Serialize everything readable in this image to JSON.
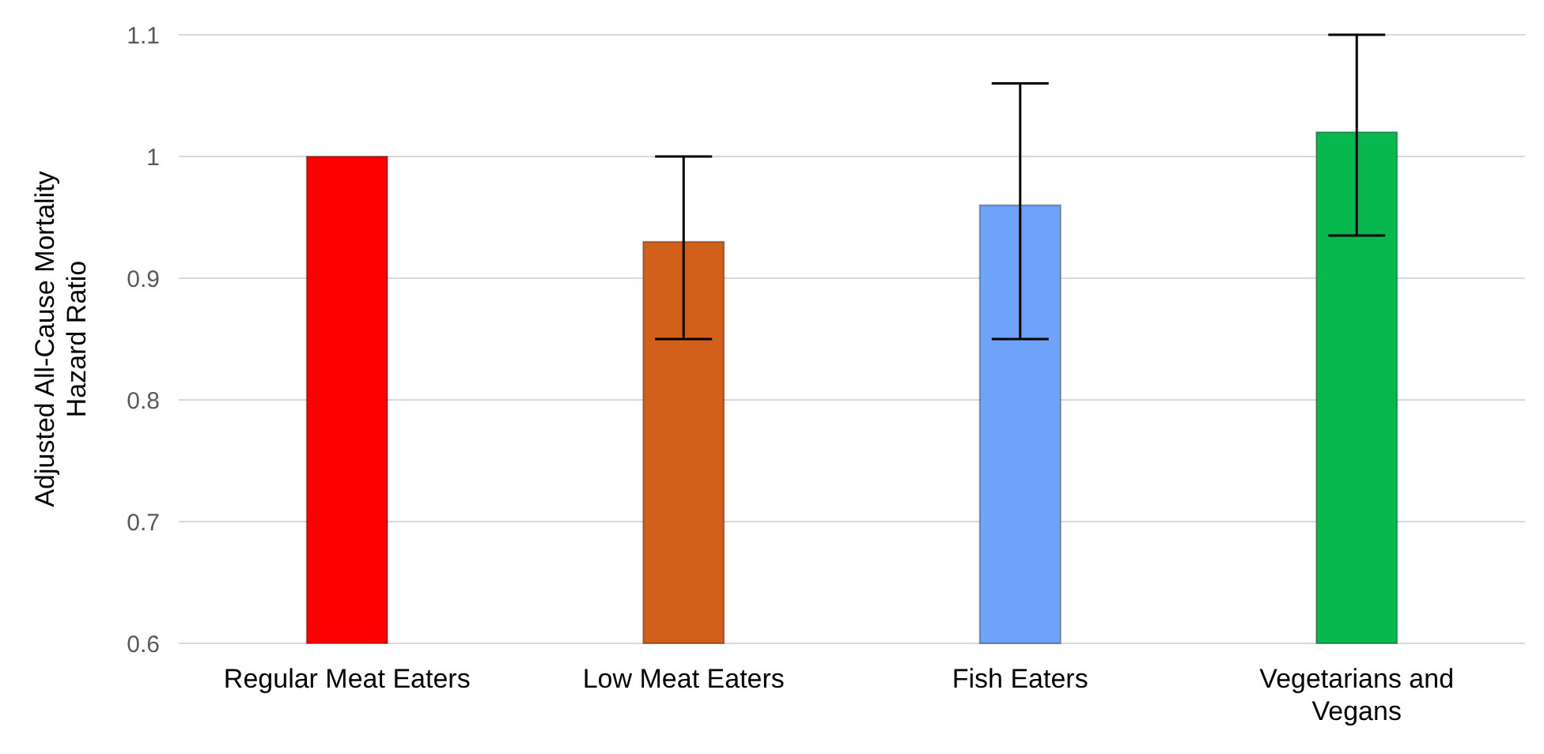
{
  "chart_data": {
    "type": "bar",
    "ylabel": "Adjusted All-Cause Mortality Hazard Ratio",
    "categories": [
      "Regular Meat Eaters",
      "Low Meat Eaters",
      "Fish Eaters",
      "Vegetarians and Vegans"
    ],
    "values": [
      1,
      0.93,
      0.96,
      1.02
    ],
    "colors": [
      "#ff0000",
      "#d2601a",
      "#6fa3fa",
      "#07b84e"
    ],
    "errors": [
      null,
      [
        0.85,
        1.0
      ],
      [
        0.85,
        1.06
      ],
      [
        0.935,
        1.1
      ]
    ],
    "ylim": [
      0.6,
      1.1
    ],
    "yticks": [
      0.6,
      0.7,
      0.8,
      0.9,
      1,
      1.1
    ],
    "grid": "y"
  }
}
